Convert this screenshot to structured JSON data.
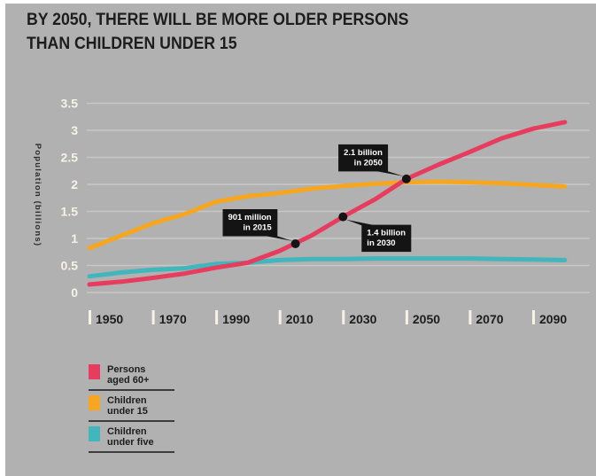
{
  "title": {
    "line1": "BY 2050, THERE WILL BE MORE OLDER PERSONS",
    "line2": "THAN CHILDREN UNDER 15"
  },
  "chart_data": {
    "type": "line",
    "title": "By 2050, there will be more older persons than children under 15",
    "xlabel": "",
    "ylabel": "Population (billions)",
    "xlim": [
      1950,
      2100
    ],
    "ylim": [
      0,
      3.5
    ],
    "grid": "horizontal",
    "legend_position": "bottom-left",
    "x_ticks": [
      1950,
      1970,
      1990,
      2010,
      2030,
      2050,
      2070,
      2090
    ],
    "x_tick_labels": [
      "1950",
      "1970",
      "1990",
      "2010",
      "2030",
      "2050",
      "2070",
      "2090"
    ],
    "y_ticks": [
      0,
      0.5,
      1,
      1.5,
      2,
      2.5,
      3,
      3.5
    ],
    "y_tick_labels": [
      "0",
      "0.5",
      "1",
      "1.5",
      "2",
      "2.5",
      "3",
      "3.5"
    ],
    "x": [
      1950,
      1960,
      1970,
      1980,
      1990,
      2000,
      2010,
      2020,
      2030,
      2040,
      2050,
      2060,
      2070,
      2080,
      2090,
      2100
    ],
    "series": [
      {
        "name": "Persons aged 60+",
        "color": "#e73c5e",
        "values": [
          0.15,
          0.2,
          0.27,
          0.35,
          0.46,
          0.55,
          0.77,
          1.05,
          1.4,
          1.72,
          2.1,
          2.36,
          2.6,
          2.85,
          3.03,
          3.15
        ]
      },
      {
        "name": "Children under 15",
        "color": "#f7a61f",
        "values": [
          0.82,
          1.05,
          1.28,
          1.45,
          1.68,
          1.78,
          1.84,
          1.92,
          1.97,
          2.01,
          2.04,
          2.05,
          2.04,
          2.02,
          1.99,
          1.96
        ]
      },
      {
        "name": "Children under five",
        "color": "#41b6bd",
        "values": [
          0.3,
          0.37,
          0.42,
          0.45,
          0.53,
          0.55,
          0.6,
          0.62,
          0.62,
          0.63,
          0.63,
          0.63,
          0.63,
          0.62,
          0.61,
          0.6
        ]
      }
    ],
    "annotations": [
      {
        "lines": [
          "901 million",
          "in 2015"
        ],
        "x": 2015,
        "y": 0.901,
        "placement": "above-left"
      },
      {
        "lines": [
          "1.4 billion",
          "in 2030"
        ],
        "x": 2030,
        "y": 1.4,
        "placement": "below-right"
      },
      {
        "lines": [
          "2.1 billion",
          "in 2050"
        ],
        "x": 2050,
        "y": 2.1,
        "placement": "above-left"
      }
    ]
  },
  "legend": {
    "items": [
      {
        "line1": "Persons",
        "line2": "aged 60+",
        "color": "#e73c5e"
      },
      {
        "line1": "Children",
        "line2": "under 15",
        "color": "#f7a61f"
      },
      {
        "line1": "Children",
        "line2": "under five",
        "color": "#41b6bd"
      }
    ]
  },
  "colors": {
    "background": "#b1b1b1",
    "frame": "#ffffff",
    "title_text": "#1d1d1d",
    "tick_ivory": "#f7f2e5",
    "gridline": "#c7c7c7",
    "callout_bg": "#141414",
    "callout_text": "#ffffff",
    "legend_divider": "#3c3c3c"
  }
}
